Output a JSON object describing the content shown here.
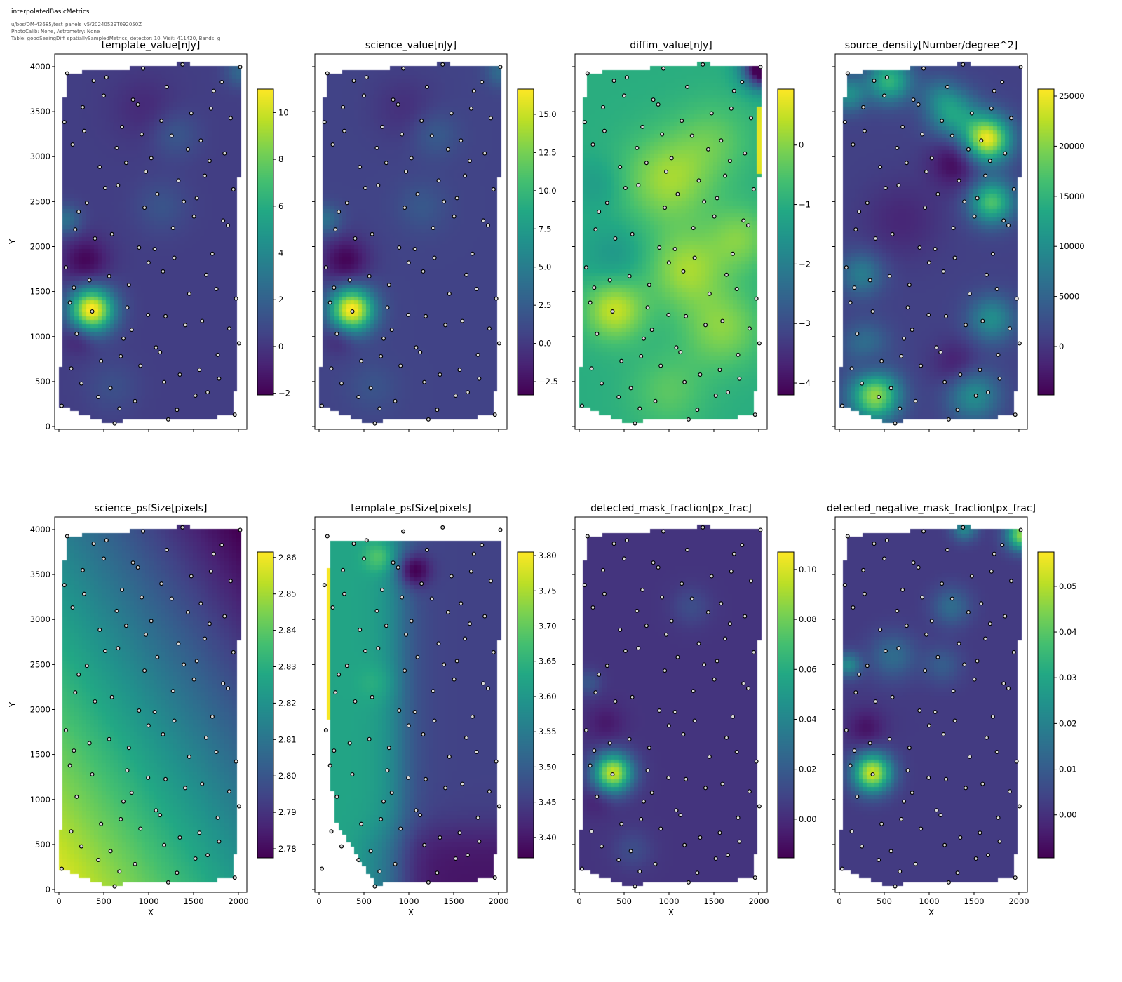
{
  "header": {
    "title": "interpolatedBasicMetrics",
    "lines": [
      "u/bos/DM-43685/test_panels_v5/20240529T092050Z",
      "PhotoCalib: None, Astrometry: None",
      "Table: goodSeeingDiff_spatiallySampledMetrics, detector: 10, Visit: 411420, Bands: g"
    ]
  },
  "sample_points": [
    [
      92,
      3926
    ],
    [
      387,
      3843
    ],
    [
      530,
      3881
    ],
    [
      938,
      3979
    ],
    [
      1377,
      4024
    ],
    [
      2020,
      3996
    ],
    [
      1203,
      3775
    ],
    [
      1815,
      3828
    ],
    [
      1725,
      3730
    ],
    [
      500,
      3677
    ],
    [
      825,
      3632
    ],
    [
      880,
      3579
    ],
    [
      266,
      3549
    ],
    [
      1475,
      3481
    ],
    [
      1694,
      3534
    ],
    [
      1914,
      3428
    ],
    [
      61,
      3383
    ],
    [
      1142,
      3398
    ],
    [
      704,
      3330
    ],
    [
      281,
      3285
    ],
    [
      923,
      3247
    ],
    [
      1256,
      3232
    ],
    [
      1581,
      3179
    ],
    [
      152,
      3134
    ],
    [
      644,
      3096
    ],
    [
      1437,
      3081
    ],
    [
      1846,
      3036
    ],
    [
      1029,
      2983
    ],
    [
      1679,
      2953
    ],
    [
      749,
      2930
    ],
    [
      455,
      2885
    ],
    [
      969,
      2832
    ],
    [
      1626,
      2787
    ],
    [
      1332,
      2734
    ],
    [
      515,
      2651
    ],
    [
      659,
      2681
    ],
    [
      1944,
      2636
    ],
    [
      1097,
      2583
    ],
    [
      1536,
      2538
    ],
    [
      1392,
      2500
    ],
    [
      311,
      2485
    ],
    [
      954,
      2432
    ],
    [
      220,
      2387
    ],
    [
      1505,
      2334
    ],
    [
      1830,
      2289
    ],
    [
      1883,
      2236
    ],
    [
      182,
      2190
    ],
    [
      1271,
      2206
    ],
    [
      591,
      2138
    ],
    [
      402,
      2090
    ],
    [
      893,
      1988
    ],
    [
      1067,
      1973
    ],
    [
      1710,
      1920
    ],
    [
      1286,
      1875
    ],
    [
      999,
      1822
    ],
    [
      77,
      1769
    ],
    [
      1160,
      1724
    ],
    [
      1641,
      1686
    ],
    [
      560,
      1671
    ],
    [
      341,
      1626
    ],
    [
      780,
      1573
    ],
    [
      167,
      1543
    ],
    [
      1755,
      1528
    ],
    [
      1452,
      1475
    ],
    [
      1974,
      1422
    ],
    [
      122,
      1377
    ],
    [
      762,
      1324
    ],
    [
      371,
      1279
    ],
    [
      994,
      1241
    ],
    [
      1188,
      1226
    ],
    [
      1596,
      1173
    ],
    [
      1407,
      1128
    ],
    [
      1898,
      1090
    ],
    [
      810,
      1075
    ],
    [
      198,
      1030
    ],
    [
      719,
      977
    ],
    [
      1082,
      879
    ],
    [
      2007,
      924
    ],
    [
      1127,
      826
    ],
    [
      1770,
      796
    ],
    [
      470,
      728
    ],
    [
      689,
      781
    ],
    [
      137,
      645
    ],
    [
      908,
      675
    ],
    [
      1566,
      630
    ],
    [
      1347,
      577
    ],
    [
      1785,
      532
    ],
    [
      250,
      479
    ],
    [
      1173,
      494
    ],
    [
      575,
      426
    ],
    [
      1657,
      381
    ],
    [
      1521,
      343
    ],
    [
      439,
      328
    ],
    [
      848,
      283
    ],
    [
      31,
      230
    ],
    [
      674,
      200
    ],
    [
      1316,
      185
    ],
    [
      1959,
      132
    ],
    [
      1218,
      79
    ],
    [
      621,
      34
    ]
  ],
  "chart_data": [
    {
      "type": "heatmap",
      "title": "template_value[nJy]",
      "xlabel": "",
      "ylabel": "Y",
      "xlim": [
        -47,
        2094
      ],
      "ylim": [
        -31,
        4140
      ],
      "xticks": [
        0,
        500,
        1000,
        1500,
        2000
      ],
      "yticks": [
        0,
        500,
        1000,
        1500,
        2000,
        2500,
        3000,
        3500,
        4000
      ],
      "yticklabels": [
        "0",
        "500",
        "1000",
        "1500",
        "2000",
        "2500",
        "3000",
        "3500",
        "4000"
      ],
      "xticklabels": [],
      "colormap": "viridis",
      "overlay": "sample_points",
      "colorbar": {
        "range": [
          -2.07,
          11.0
        ],
        "ticks": [
          -2,
          0,
          2,
          4,
          6,
          8,
          10
        ],
        "tick_labels": [
          "−2",
          "0",
          "2",
          "4",
          "6",
          "8",
          "10"
        ]
      }
    },
    {
      "type": "heatmap",
      "title": "science_value[nJy]",
      "xlabel": "",
      "ylabel": "",
      "xlim": [
        -47,
        2094
      ],
      "ylim": [
        -31,
        4140
      ],
      "xticks": [
        0,
        500,
        1000,
        1500,
        2000
      ],
      "yticks": [
        0,
        500,
        1000,
        1500,
        2000,
        2500,
        3000,
        3500,
        4000
      ],
      "yticklabels": [],
      "xticklabels": [],
      "colormap": "viridis",
      "overlay": "sample_points",
      "colorbar": {
        "range": [
          -3.37,
          16.65
        ],
        "ticks": [
          -2.5,
          0,
          2.5,
          5,
          7.5,
          10,
          12.5,
          15
        ],
        "tick_labels": [
          "−2.5",
          "0.0",
          "2.5",
          "5.0",
          "7.5",
          "10.0",
          "12.5",
          "15.0"
        ]
      }
    },
    {
      "type": "heatmap",
      "title": "diffim_value[nJy]",
      "xlabel": "",
      "ylabel": "",
      "xlim": [
        -47,
        2094
      ],
      "ylim": [
        -31,
        4140
      ],
      "xticks": [
        0,
        500,
        1000,
        1500,
        2000
      ],
      "yticks": [
        0,
        500,
        1000,
        1500,
        2000,
        2500,
        3000,
        3500,
        4000
      ],
      "yticklabels": [],
      "xticklabels": [],
      "colormap": "viridis",
      "overlay": "sample_points",
      "colorbar": {
        "range": [
          -4.2,
          0.94
        ],
        "ticks": [
          -4,
          -3,
          -2,
          -1,
          0
        ],
        "tick_labels": [
          "−4",
          "−3",
          "−2",
          "−1",
          "0"
        ]
      }
    },
    {
      "type": "heatmap",
      "title": "source_density[Number/degree^2]",
      "xlabel": "",
      "ylabel": "",
      "xlim": [
        -47,
        2094
      ],
      "ylim": [
        -31,
        4140
      ],
      "xticks": [
        0,
        500,
        1000,
        1500,
        2000
      ],
      "yticks": [
        0,
        500,
        1000,
        1500,
        2000,
        2500,
        3000,
        3500,
        4000
      ],
      "yticklabels": [],
      "xticklabels": [],
      "colormap": "viridis",
      "overlay": "sample_points",
      "colorbar": {
        "range": [
          -4830,
          25700
        ],
        "ticks": [
          0,
          5000,
          10000,
          15000,
          20000,
          25000
        ],
        "tick_labels": [
          "0",
          "5000",
          "10000",
          "15000",
          "20000",
          "25000"
        ]
      }
    },
    {
      "type": "heatmap",
      "title": "science_psfSize[pixels]",
      "xlabel": "X",
      "ylabel": "Y",
      "xlim": [
        -47,
        2094
      ],
      "ylim": [
        -31,
        4140
      ],
      "xticks": [
        0,
        500,
        1000,
        1500,
        2000
      ],
      "yticks": [
        0,
        500,
        1000,
        1500,
        2000,
        2500,
        3000,
        3500,
        4000
      ],
      "xticklabels": [
        "0",
        "500",
        "1000",
        "1500",
        "2000"
      ],
      "yticklabels": [
        "0",
        "500",
        "1000",
        "1500",
        "2000",
        "2500",
        "3000",
        "3500",
        "4000"
      ],
      "colormap": "viridis",
      "overlay": "sample_points",
      "colorbar": {
        "range": [
          2.7775,
          2.8615
        ],
        "ticks": [
          2.78,
          2.79,
          2.8,
          2.81,
          2.82,
          2.83,
          2.84,
          2.85,
          2.86
        ],
        "tick_labels": [
          "2.78",
          "2.79",
          "2.80",
          "2.81",
          "2.82",
          "2.83",
          "2.84",
          "2.85",
          "2.86"
        ]
      }
    },
    {
      "type": "heatmap",
      "title": "template_psfSize[pixels]",
      "xlabel": "X",
      "ylabel": "",
      "xlim": [
        -47,
        2094
      ],
      "ylim": [
        -31,
        4140
      ],
      "xticks": [
        0,
        500,
        1000,
        1500,
        2000
      ],
      "yticks": [
        0,
        500,
        1000,
        1500,
        2000,
        2500,
        3000,
        3500,
        4000
      ],
      "xticklabels": [
        "0",
        "500",
        "1000",
        "1500",
        "2000"
      ],
      "yticklabels": [],
      "colormap": "viridis",
      "overlay": "sample_points",
      "colorbar": {
        "range": [
          3.371,
          3.805
        ],
        "ticks": [
          3.4,
          3.45,
          3.5,
          3.55,
          3.6,
          3.65,
          3.7,
          3.75,
          3.8
        ],
        "tick_labels": [
          "3.40",
          "3.45",
          "3.50",
          "3.55",
          "3.60",
          "3.65",
          "3.70",
          "3.75",
          "3.80"
        ]
      }
    },
    {
      "type": "heatmap",
      "title": "detected_mask_fraction[px_frac]",
      "xlabel": "X",
      "ylabel": "",
      "xlim": [
        -47,
        2094
      ],
      "ylim": [
        -31,
        4140
      ],
      "xticks": [
        0,
        500,
        1000,
        1500,
        2000
      ],
      "yticks": [
        0,
        500,
        1000,
        1500,
        2000,
        2500,
        3000,
        3500,
        4000
      ],
      "xticklabels": [
        "0",
        "500",
        "1000",
        "1500",
        "2000"
      ],
      "yticklabels": [],
      "colormap": "viridis",
      "overlay": "sample_points",
      "colorbar": {
        "range": [
          -0.0155,
          0.107
        ],
        "ticks": [
          0,
          0.02,
          0.04,
          0.06,
          0.08,
          0.1
        ],
        "tick_labels": [
          "0.00",
          "0.02",
          "0.04",
          "0.06",
          "0.08",
          "0.10"
        ]
      }
    },
    {
      "type": "heatmap",
      "title": "detected_negative_mask_fraction[px_frac]",
      "xlabel": "X",
      "ylabel": "",
      "xlim": [
        -47,
        2094
      ],
      "ylim": [
        -31,
        4140
      ],
      "xticks": [
        0,
        500,
        1000,
        1500,
        2000
      ],
      "yticks": [
        0,
        500,
        1000,
        1500,
        2000,
        2500,
        3000,
        3500,
        4000
      ],
      "xticklabels": [
        "0",
        "500",
        "1000",
        "1500",
        "2000"
      ],
      "yticklabels": [],
      "colormap": "viridis",
      "overlay": "sample_points",
      "colorbar": {
        "range": [
          -0.0094,
          0.0575
        ],
        "ticks": [
          0,
          0.01,
          0.02,
          0.03,
          0.04,
          0.05
        ],
        "tick_labels": [
          "0.00",
          "0.01",
          "0.02",
          "0.03",
          "0.04",
          "0.05"
        ]
      }
    }
  ]
}
